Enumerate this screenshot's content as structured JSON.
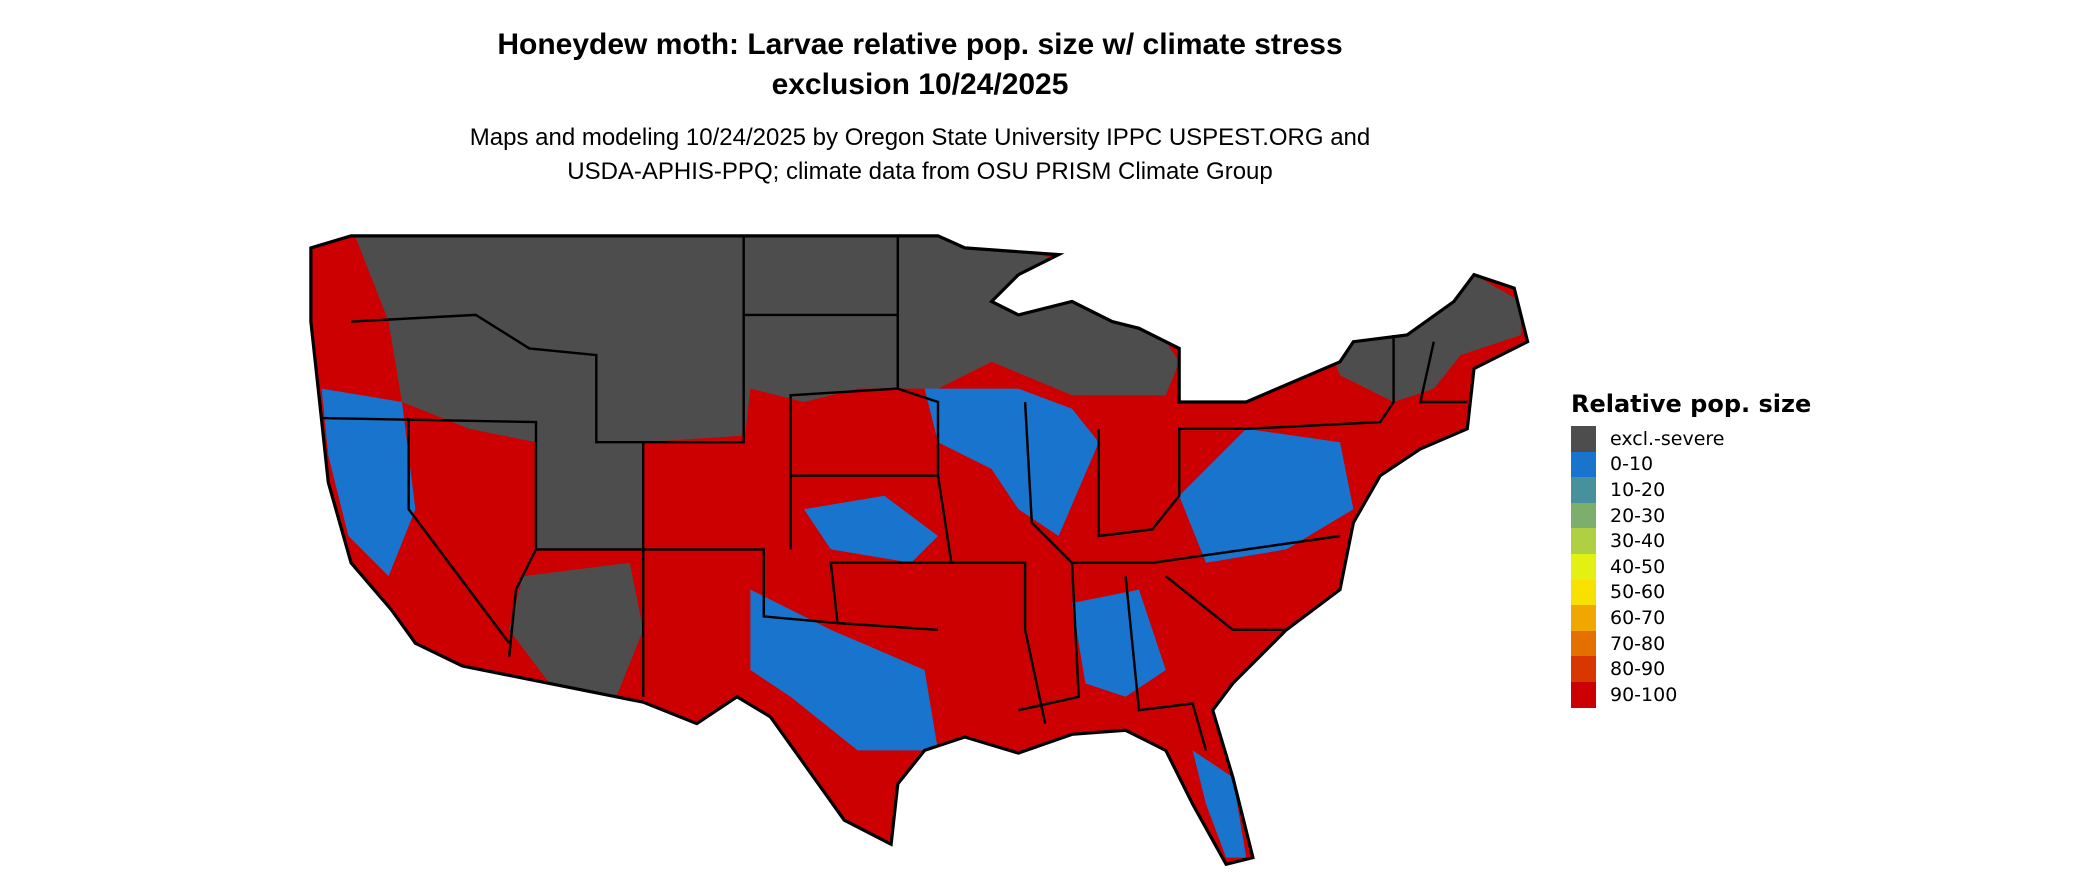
{
  "title": {
    "line1": "Honeydew moth: Larvae relative pop. size w/ climate stress",
    "line2": "exclusion 10/24/2025"
  },
  "subtitle": {
    "line1": "Maps and modeling 10/24/2025 by Oregon State University IPPC USPEST.ORG and",
    "line2": "USDA-APHIS-PPQ; climate data from OSU PRISM Climate Group"
  },
  "legend": {
    "title": "Relative pop. size",
    "items": [
      {
        "label": "excl.-severe",
        "color": "#4d4d4d"
      },
      {
        "label": "0-10",
        "color": "#1874cd"
      },
      {
        "label": "10-20",
        "color": "#48909c"
      },
      {
        "label": "20-30",
        "color": "#7caf6c"
      },
      {
        "label": "30-40",
        "color": "#b0d044"
      },
      {
        "label": "40-50",
        "color": "#e4f014"
      },
      {
        "label": "50-60",
        "color": "#f8e000"
      },
      {
        "label": "60-70",
        "color": "#f0a800"
      },
      {
        "label": "70-80",
        "color": "#e47000"
      },
      {
        "label": "80-90",
        "color": "#d83800"
      },
      {
        "label": "90-100",
        "color": "#cc0000"
      }
    ]
  },
  "map": {
    "region": "Contiguous United States",
    "boundaries": "state",
    "border_color": "#000000"
  }
}
